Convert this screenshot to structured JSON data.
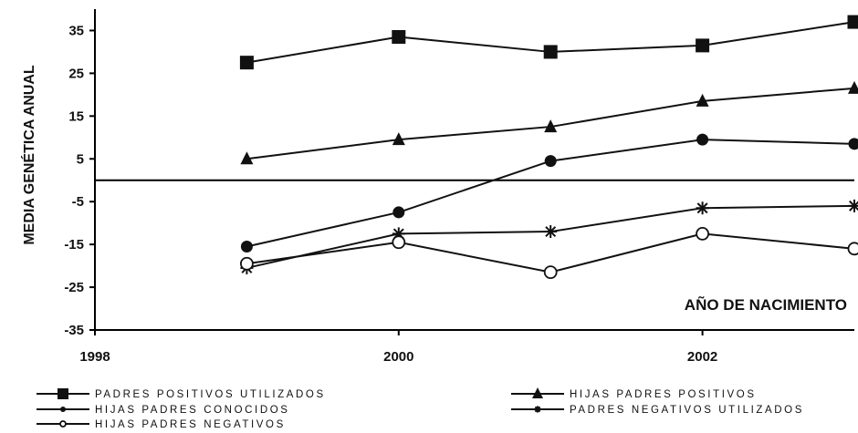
{
  "chart_data": {
    "type": "line",
    "ylabel": "MEDIA GENÉTICA ANUAL",
    "xlabel": "AÑO DE NACIMIENTO",
    "xlim": [
      1998,
      2003
    ],
    "ylim": [
      -35,
      40
    ],
    "x_ticks": [
      "1998",
      "2000",
      "2002"
    ],
    "y_ticks": [
      "35",
      "25",
      "15",
      "5",
      "-5",
      "-15",
      "-25",
      "-35"
    ],
    "x": [
      1999,
      2000,
      2001,
      2002,
      2003
    ],
    "series": [
      {
        "name": "PADRES POSITIVOS UTILIZADOS",
        "marker": "square",
        "values": [
          27.5,
          33.5,
          30,
          31.5,
          37
        ]
      },
      {
        "name": "HIJAS PADRES POSITIVOS",
        "marker": "triangle",
        "values": [
          5,
          9.5,
          12.5,
          18.5,
          21.5
        ]
      },
      {
        "name": "HIJAS PADRES CONOCIDOS",
        "marker": "circle",
        "values": [
          -15.5,
          -7.5,
          4.5,
          9.5,
          8.5
        ]
      },
      {
        "name": "PADRES NEGATIVOS UTILIZADOS",
        "marker": "star",
        "values": [
          -20.5,
          -12.5,
          -12,
          -6.5,
          -6
        ]
      },
      {
        "name": "HIJAS PADRES NEGATIVOS",
        "marker": "open-circle",
        "values": [
          -19.5,
          -14.5,
          -21.5,
          -12.5,
          -16
        ]
      }
    ],
    "legend": "bottom",
    "grid": false
  }
}
